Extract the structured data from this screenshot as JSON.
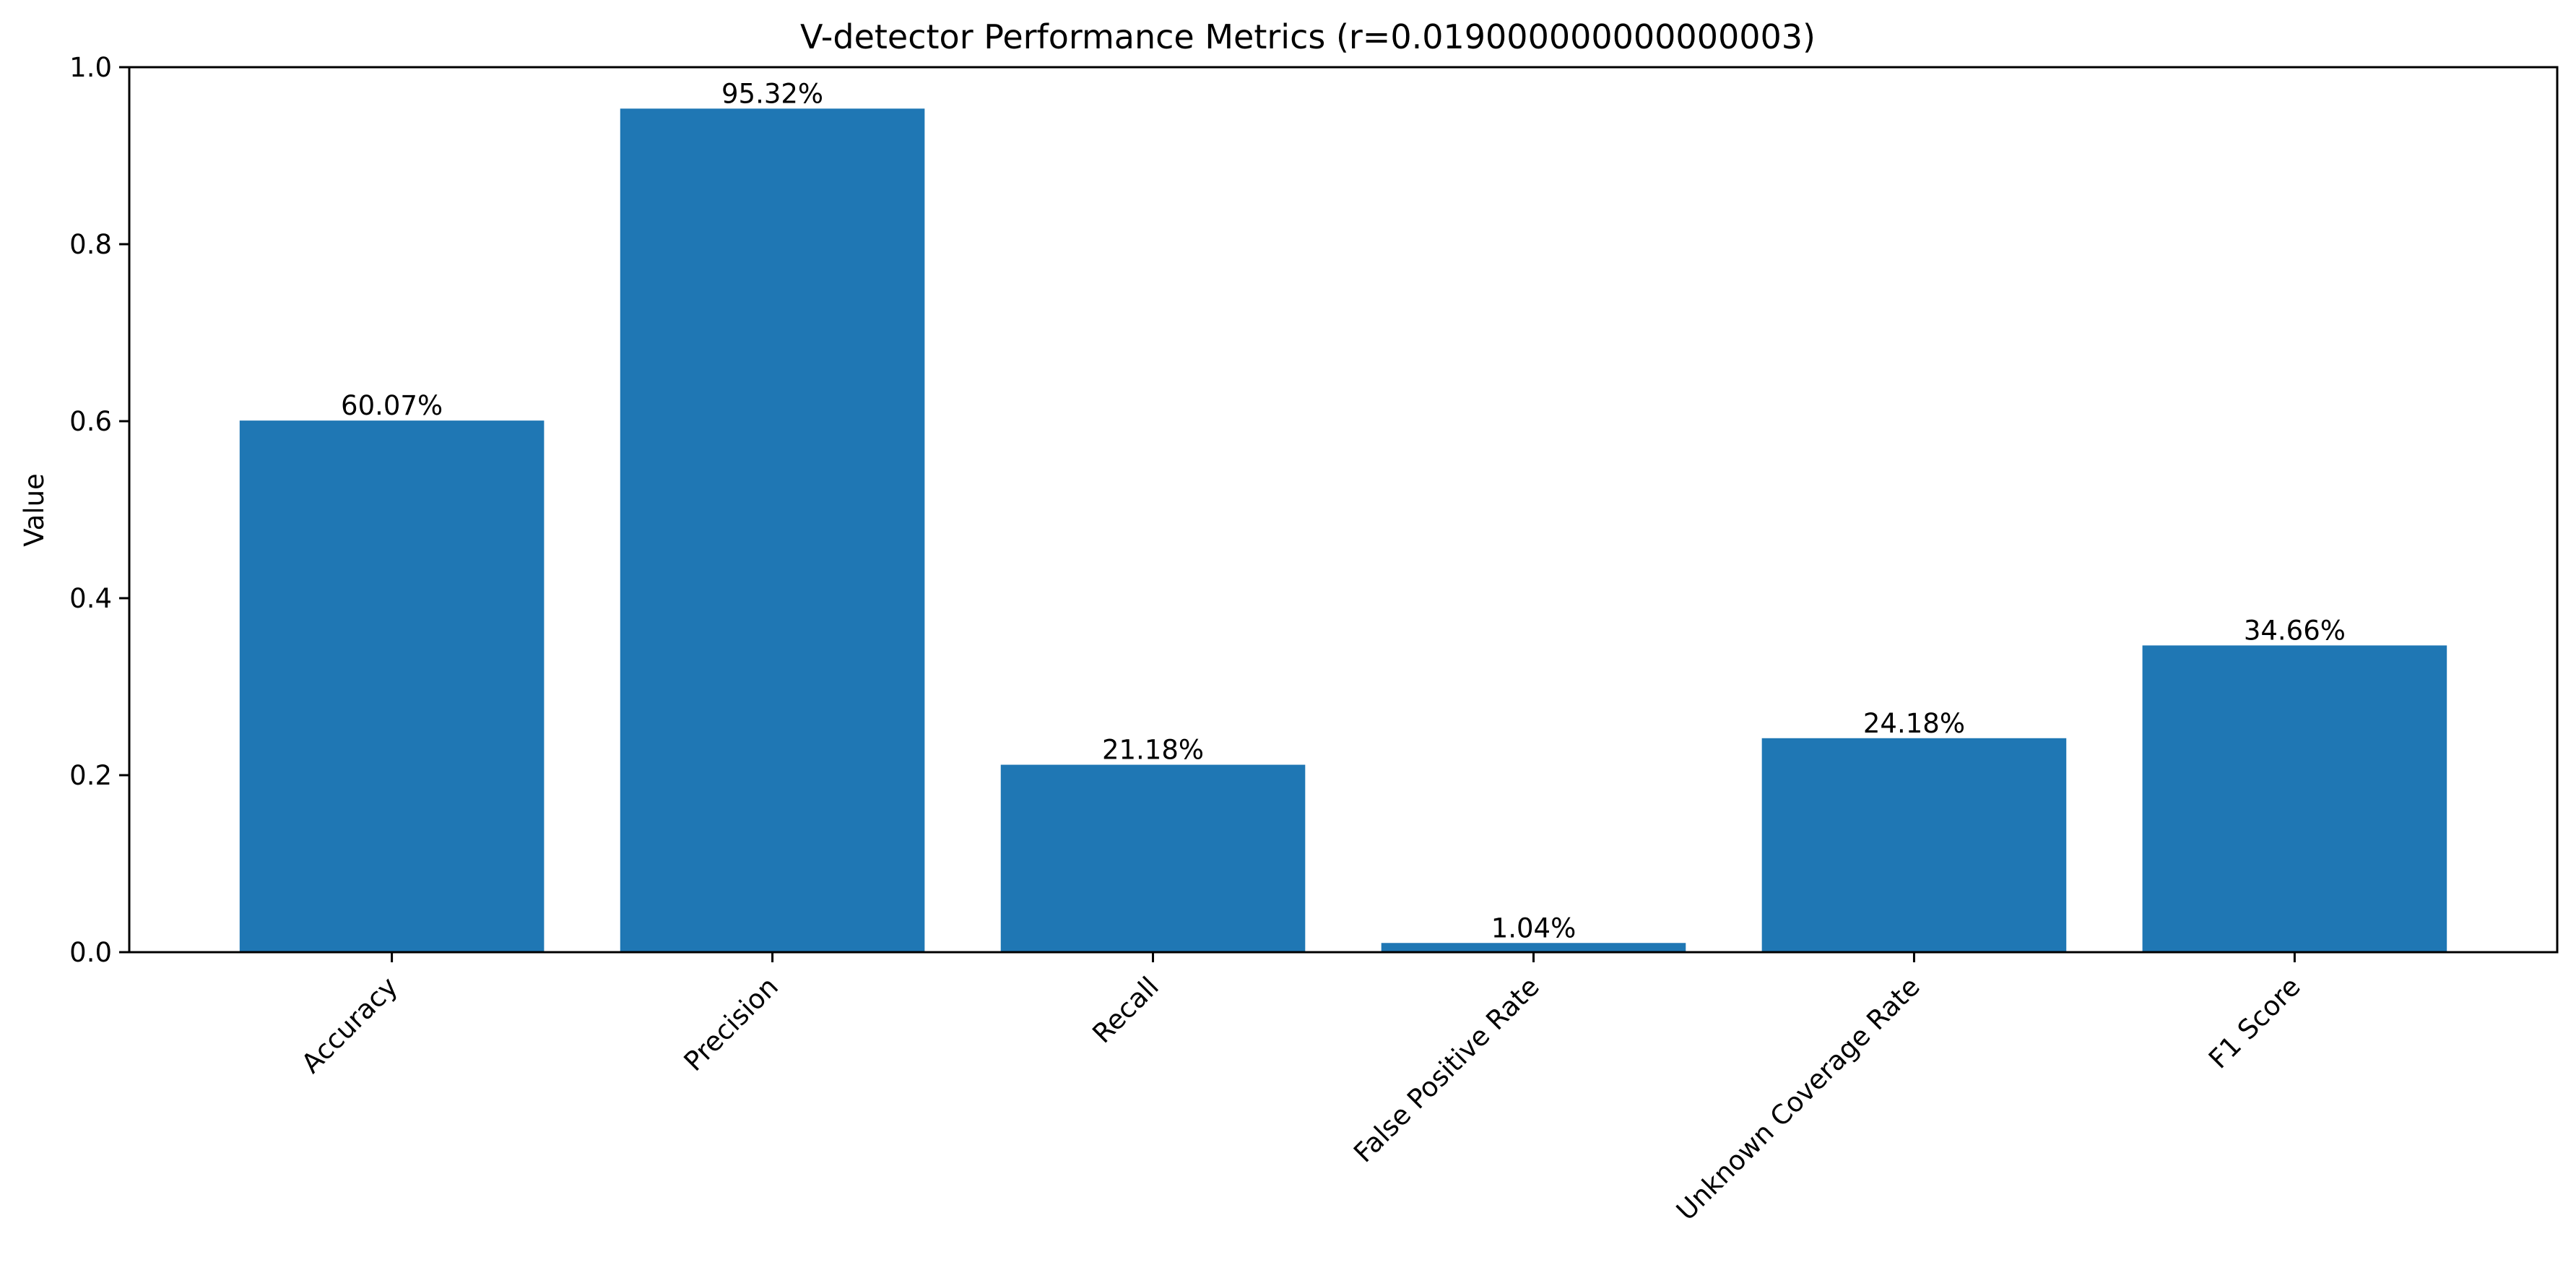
{
  "chart_data": {
    "type": "bar",
    "title": "V-detector Performance Metrics (r=0.019000000000000003)",
    "xlabel": "",
    "ylabel": "Value",
    "categories": [
      "Accuracy",
      "Precision",
      "Recall",
      "False Positive Rate",
      "Unknown Coverage Rate",
      "F1 Score"
    ],
    "values": [
      0.6007,
      0.9532,
      0.2118,
      0.0104,
      0.2418,
      0.3466
    ],
    "data_labels": [
      "60.07%",
      "95.32%",
      "21.18%",
      "1.04%",
      "24.18%",
      "34.66%"
    ],
    "ylim": [
      0.0,
      1.0
    ],
    "yticks": [
      "0.0",
      "0.2",
      "0.4",
      "0.6",
      "0.8",
      "1.0"
    ],
    "bar_color": "#1f77b4",
    "grid": false,
    "legend": "none"
  }
}
